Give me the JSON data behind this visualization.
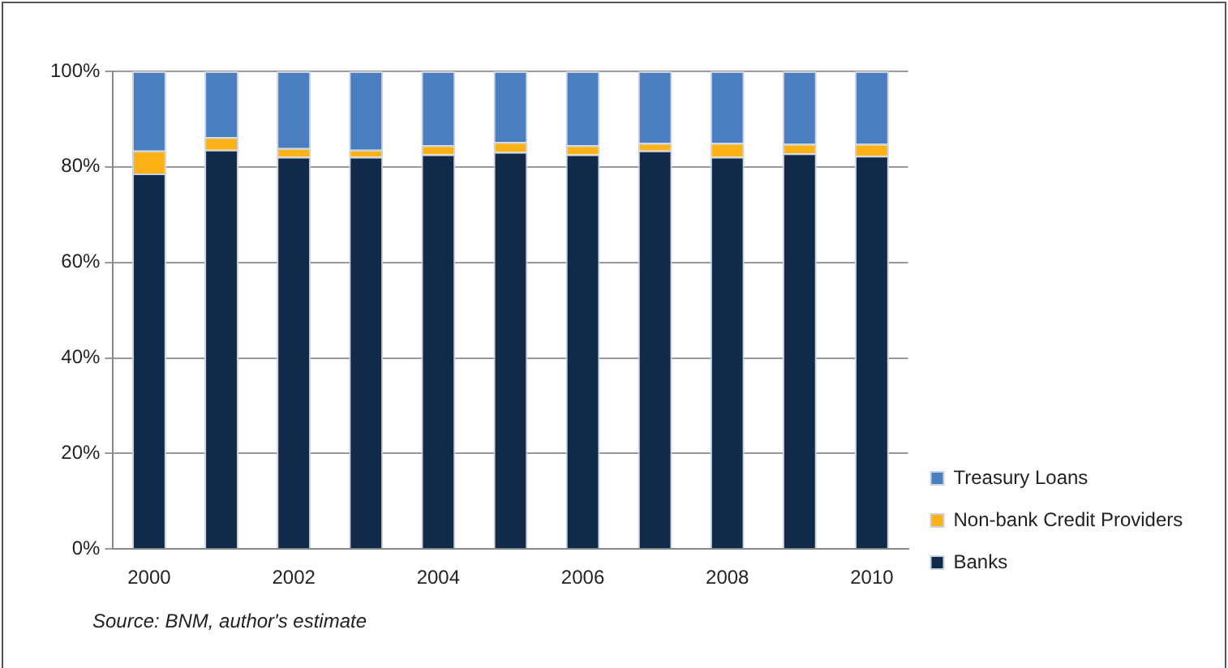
{
  "chart_data": {
    "type": "bar",
    "stacked": true,
    "categories": [
      "2000",
      null,
      "2002",
      null,
      "2004",
      null,
      "2006",
      null,
      "2008",
      null,
      "2010"
    ],
    "series": [
      {
        "name": "Banks",
        "color": "#112a4a",
        "values": [
          78.6,
          83.6,
          82.1,
          82.1,
          82.6,
          83.1,
          82.6,
          83.4,
          82.1,
          82.8,
          82.3
        ]
      },
      {
        "name": "Non-bank Credit Providers",
        "color": "#fbb217",
        "values": [
          4.8,
          2.6,
          1.8,
          1.5,
          1.9,
          2.1,
          1.9,
          1.6,
          2.9,
          2.0,
          2.5
        ]
      },
      {
        "name": "Treasury Loans",
        "color": "#4a7ebf",
        "values": [
          16.6,
          13.8,
          16.1,
          16.4,
          15.5,
          14.8,
          15.5,
          15.0,
          15.0,
          15.2,
          15.2
        ]
      }
    ],
    "ylim": [
      0,
      100
    ],
    "yticks": [
      {
        "value": 0,
        "label": "0%"
      },
      {
        "value": 20,
        "label": "20%"
      },
      {
        "value": 40,
        "label": "40%"
      },
      {
        "value": 60,
        "label": "60%"
      },
      {
        "value": 80,
        "label": "80%"
      },
      {
        "value": 100,
        "label": "100%"
      }
    ],
    "grid": "y",
    "legend": "right",
    "annotations": [
      "Source: BNM, author's estimate"
    ]
  }
}
